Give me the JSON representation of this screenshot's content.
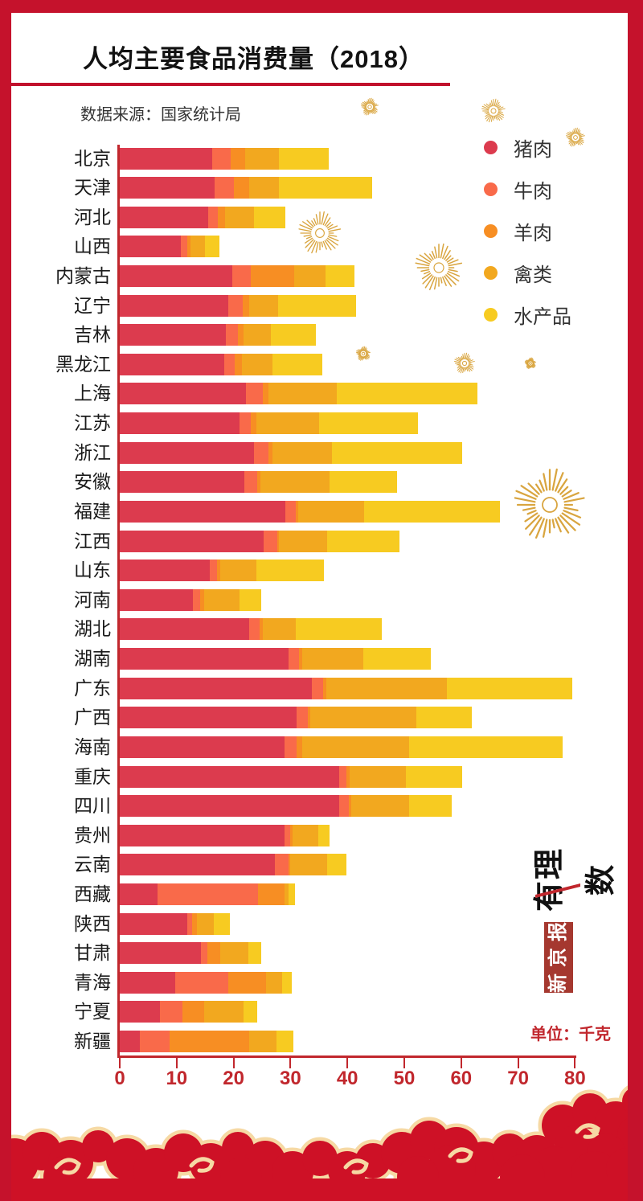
{
  "title": "人均主要食品消费量（2018）",
  "source": "数据来源：国家统计局",
  "unit_label": "单位：千克",
  "watermark": {
    "logo": "有理数",
    "box": "新京报"
  },
  "colors": {
    "frame_red": "#C5122C",
    "axis_red": "#C1272D",
    "decor_gold": "#D9A53F",
    "cloud_red": "#CE1126",
    "cloud_cream": "#F6D9A4"
  },
  "chart_data": {
    "type": "bar",
    "orientation": "horizontal",
    "stacked": true,
    "unit": "千克",
    "legend_position": "top-right",
    "grid": false,
    "xlim": [
      0,
      80
    ],
    "x_ticks": [
      0,
      10,
      20,
      30,
      40,
      50,
      60,
      70,
      80
    ],
    "categories": [
      "北京",
      "天津",
      "河北",
      "山西",
      "内蒙古",
      "辽宁",
      "吉林",
      "黑龙江",
      "上海",
      "江苏",
      "浙江",
      "安徽",
      "福建",
      "江西",
      "山东",
      "河南",
      "湖北",
      "湖南",
      "广东",
      "广西",
      "海南",
      "重庆",
      "四川",
      "贵州",
      "云南",
      "西藏",
      "陕西",
      "甘肃",
      "青海",
      "宁夏",
      "新疆"
    ],
    "series": [
      {
        "name": "猪肉",
        "color": "#DC3B4E",
        "values": [
          16.2,
          16.6,
          15.6,
          10.8,
          19.8,
          19.0,
          18.7,
          18.4,
          22.2,
          21.0,
          23.6,
          21.9,
          29.1,
          25.3,
          15.8,
          12.8,
          22.7,
          29.7,
          33.7,
          31.1,
          29.0,
          38.5,
          38.5,
          28.9,
          27.3,
          6.7,
          11.8,
          14.2,
          9.7,
          7.0,
          3.5
        ]
      },
      {
        "name": "牛肉",
        "color": "#F96A4A",
        "values": [
          3.3,
          3.5,
          1.6,
          1.1,
          3.2,
          2.6,
          2.1,
          1.8,
          2.9,
          2.0,
          2.5,
          2.2,
          1.8,
          2.4,
          1.3,
          1.3,
          1.9,
          1.8,
          2.1,
          2.0,
          2.1,
          1.4,
          1.7,
          1.0,
          2.3,
          17.6,
          0.9,
          1.2,
          9.3,
          4.0,
          5.2
        ]
      },
      {
        "name": "羊肉",
        "color": "#F78E23",
        "values": [
          2.5,
          2.6,
          1.3,
          0.6,
          7.6,
          1.2,
          1.0,
          1.3,
          1.0,
          1.0,
          0.7,
          0.6,
          0.5,
          0.3,
          0.6,
          0.8,
          0.5,
          0.5,
          0.5,
          0.4,
          1.0,
          0.5,
          0.5,
          0.4,
          0.3,
          4.6,
          0.9,
          2.3,
          6.7,
          3.9,
          14.0
        ]
      },
      {
        "name": "禽类",
        "color": "#F2A81F",
        "values": [
          5.9,
          5.3,
          5.1,
          2.5,
          5.6,
          5.0,
          4.8,
          5.3,
          12.1,
          11.0,
          10.5,
          12.2,
          11.6,
          8.4,
          6.3,
          6.1,
          5.8,
          10.8,
          21.2,
          18.6,
          18.7,
          9.9,
          10.2,
          4.6,
          6.5,
          0.7,
          3.0,
          4.9,
          2.9,
          6.8,
          4.9
        ]
      },
      {
        "name": "水产品",
        "color": "#F7CB21",
        "values": [
          8.8,
          16.3,
          5.5,
          2.5,
          5.1,
          13.7,
          7.9,
          8.8,
          24.6,
          17.4,
          22.9,
          11.9,
          23.8,
          12.7,
          11.9,
          3.9,
          15.1,
          11.8,
          22.0,
          9.8,
          27.0,
          9.9,
          7.4,
          2.0,
          3.5,
          1.2,
          2.8,
          2.3,
          1.6,
          2.5,
          2.9
        ]
      }
    ]
  }
}
